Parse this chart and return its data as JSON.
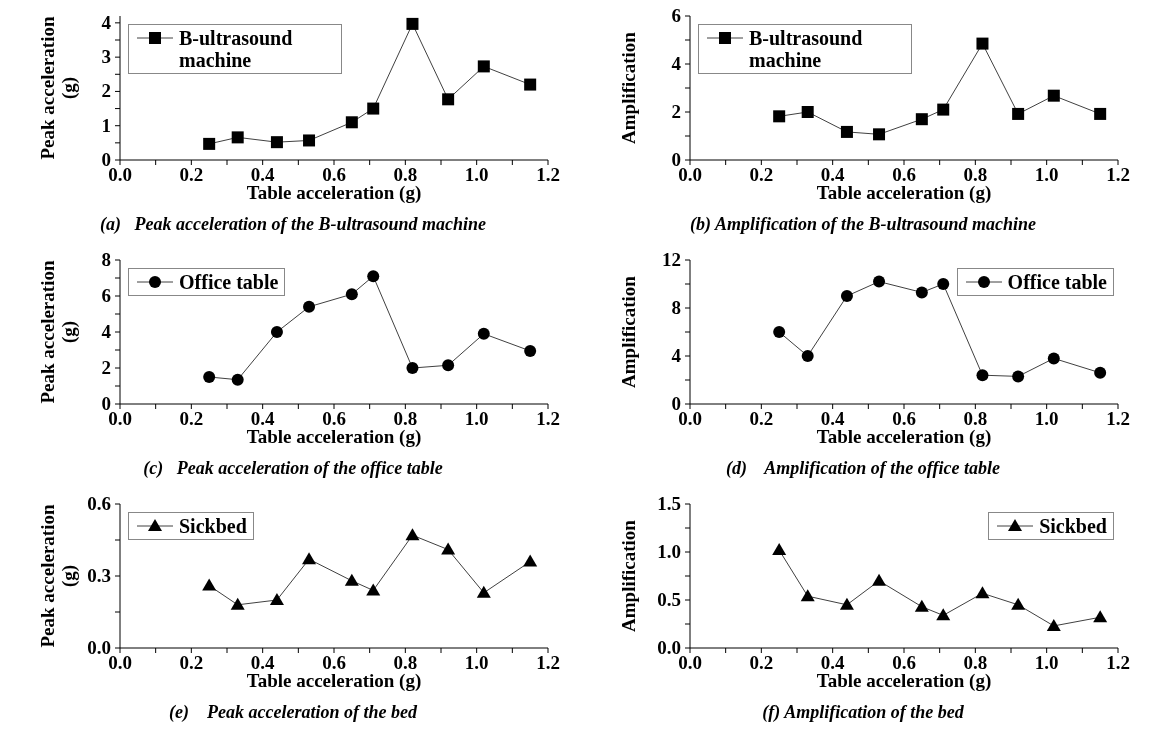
{
  "chart_data": [
    {
      "type": "line",
      "title": "(a)   Peak acceleration of the B-ultrasound machine",
      "xlabel": "Table acceleration (g)",
      "ylabel": "Peak acceleration (g)",
      "x": [
        0.25,
        0.33,
        0.44,
        0.53,
        0.65,
        0.71,
        0.82,
        0.92,
        1.02,
        1.15
      ],
      "series": [
        {
          "name": "B-ultrasound machine",
          "color": "#000000",
          "values": [
            0.47,
            0.66,
            0.52,
            0.57,
            1.1,
            1.5,
            3.97,
            1.77,
            2.73,
            2.2
          ]
        }
      ],
      "xlim": [
        0,
        1.2
      ],
      "xticks": [
        {
          "value": 0,
          "label": "0.0"
        },
        {
          "value": 0.1,
          "label": null
        },
        0.2,
        {
          "value": 0.3,
          "label": null
        },
        0.4,
        {
          "value": 0.5,
          "label": null
        },
        0.6,
        {
          "value": 0.7,
          "label": null
        },
        0.8,
        {
          "value": 0.9,
          "label": null
        },
        {
          "value": 1,
          "label": "1.0"
        },
        {
          "value": 1.1,
          "label": null
        },
        1.2
      ],
      "ylim": [
        0,
        4.2
      ],
      "yticks": [
        0,
        {
          "value": 0.5,
          "label": null
        },
        1,
        {
          "value": 1.5,
          "label": null
        },
        2,
        {
          "value": 2.5,
          "label": null
        },
        3,
        {
          "value": 3.5,
          "label": null
        },
        4
      ],
      "marker": "square",
      "legend": "top left",
      "grid": false
    },
    {
      "type": "line",
      "title": "(b) Amplification of the B-ultrasound machine",
      "xlabel": "Table acceleration (g)",
      "ylabel": "Amplification",
      "x": [
        0.25,
        0.33,
        0.44,
        0.53,
        0.65,
        0.71,
        0.82,
        0.92,
        1.02,
        1.15
      ],
      "series": [
        {
          "name": "B-ultrasound machine",
          "color": "#000000",
          "values": [
            1.82,
            2.0,
            1.17,
            1.07,
            1.7,
            2.1,
            4.85,
            1.92,
            2.68,
            1.92
          ]
        }
      ],
      "xlim": [
        0,
        1.2
      ],
      "xticks": [
        {
          "value": 0,
          "label": "0.0"
        },
        {
          "value": 0.1,
          "label": null
        },
        0.2,
        {
          "value": 0.3,
          "label": null
        },
        0.4,
        {
          "value": 0.5,
          "label": null
        },
        0.6,
        {
          "value": 0.7,
          "label": null
        },
        0.8,
        {
          "value": 0.9,
          "label": null
        },
        {
          "value": 1,
          "label": "1.0"
        },
        {
          "value": 1.1,
          "label": null
        },
        1.2
      ],
      "ylim": [
        0,
        6
      ],
      "yticks": [
        0,
        {
          "value": 1,
          "label": null
        },
        2,
        {
          "value": 3,
          "label": null
        },
        4,
        {
          "value": 5,
          "label": null
        },
        6
      ],
      "marker": "square",
      "legend": "top left",
      "grid": false
    },
    {
      "type": "line",
      "title": "(c)   Peak acceleration of the office table",
      "xlabel": "Table acceleration (g)",
      "ylabel": "Peak acceleration (g)",
      "x": [
        0.25,
        0.33,
        0.44,
        0.53,
        0.65,
        0.71,
        0.82,
        0.92,
        1.02,
        1.15
      ],
      "series": [
        {
          "name": "Office table",
          "color": "#000000",
          "values": [
            1.5,
            1.35,
            4.0,
            5.4,
            6.1,
            7.1,
            2.0,
            2.15,
            3.9,
            2.95
          ]
        }
      ],
      "xlim": [
        0,
        1.2
      ],
      "xticks": [
        {
          "value": 0,
          "label": "0.0"
        },
        {
          "value": 0.1,
          "label": null
        },
        0.2,
        {
          "value": 0.3,
          "label": null
        },
        0.4,
        {
          "value": 0.5,
          "label": null
        },
        0.6,
        {
          "value": 0.7,
          "label": null
        },
        0.8,
        {
          "value": 0.9,
          "label": null
        },
        {
          "value": 1,
          "label": "1.0"
        },
        {
          "value": 1.1,
          "label": null
        },
        1.2
      ],
      "ylim": [
        0,
        8
      ],
      "yticks": [
        0,
        {
          "value": 1,
          "label": null
        },
        2,
        {
          "value": 3,
          "label": null
        },
        4,
        {
          "value": 5,
          "label": null
        },
        6,
        {
          "value": 7,
          "label": null
        },
        8
      ],
      "marker": "circle",
      "legend": "top left",
      "grid": false
    },
    {
      "type": "line",
      "title": "(d)    Amplification of the office table",
      "xlabel": "Table acceleration (g)",
      "ylabel": "Amplification",
      "x": [
        0.25,
        0.33,
        0.44,
        0.53,
        0.65,
        0.71,
        0.82,
        0.92,
        1.02,
        1.15
      ],
      "series": [
        {
          "name": "Office table",
          "color": "#000000",
          "values": [
            6.0,
            4.0,
            9.0,
            10.2,
            9.3,
            10.0,
            2.4,
            2.3,
            3.8,
            2.6
          ]
        }
      ],
      "xlim": [
        0,
        1.2
      ],
      "xticks": [
        {
          "value": 0,
          "label": "0.0"
        },
        {
          "value": 0.1,
          "label": null
        },
        0.2,
        {
          "value": 0.3,
          "label": null
        },
        0.4,
        {
          "value": 0.5,
          "label": null
        },
        0.6,
        {
          "value": 0.7,
          "label": null
        },
        0.8,
        {
          "value": 0.9,
          "label": null
        },
        {
          "value": 1,
          "label": "1.0"
        },
        {
          "value": 1.1,
          "label": null
        },
        1.2
      ],
      "ylim": [
        0,
        12
      ],
      "yticks": [
        0,
        {
          "value": 2,
          "label": null
        },
        4,
        {
          "value": 6,
          "label": null
        },
        8,
        {
          "value": 10,
          "label": null
        },
        12
      ],
      "marker": "circle",
      "legend": "top right",
      "grid": false
    },
    {
      "type": "line",
      "title": "(e)    Peak acceleration of the bed",
      "xlabel": "Table acceleration (g)",
      "ylabel": "Peak acceleration (g)",
      "x": [
        0.25,
        0.33,
        0.44,
        0.53,
        0.65,
        0.71,
        0.82,
        0.92,
        1.02,
        1.15
      ],
      "series": [
        {
          "name": "Sickbed",
          "color": "#000000",
          "values": [
            0.26,
            0.18,
            0.2,
            0.37,
            0.28,
            0.24,
            0.47,
            0.41,
            0.23,
            0.36
          ]
        }
      ],
      "xlim": [
        0,
        1.2
      ],
      "xticks": [
        {
          "value": 0,
          "label": "0.0"
        },
        {
          "value": 0.1,
          "label": null
        },
        0.2,
        {
          "value": 0.3,
          "label": null
        },
        0.4,
        {
          "value": 0.5,
          "label": null
        },
        0.6,
        {
          "value": 0.7,
          "label": null
        },
        0.8,
        {
          "value": 0.9,
          "label": null
        },
        {
          "value": 1,
          "label": "1.0"
        },
        {
          "value": 1.1,
          "label": null
        },
        1.2
      ],
      "ylim": [
        0,
        0.6
      ],
      "yticks": [
        {
          "value": 0,
          "label": "0.0"
        },
        {
          "value": 0.15,
          "label": null
        },
        0.3,
        {
          "value": 0.45,
          "label": null
        },
        0.6
      ],
      "marker": "triangle",
      "legend": "top left",
      "grid": false
    },
    {
      "type": "line",
      "title": "(f) Amplification of the bed",
      "xlabel": "Table acceleration (g)",
      "ylabel": "Amplification",
      "x": [
        0.25,
        0.33,
        0.44,
        0.53,
        0.65,
        0.71,
        0.82,
        0.92,
        1.02,
        1.15
      ],
      "series": [
        {
          "name": "Sickbed",
          "color": "#000000",
          "values": [
            1.02,
            0.54,
            0.45,
            0.7,
            0.43,
            0.34,
            0.57,
            0.45,
            0.23,
            0.32
          ]
        }
      ],
      "xlim": [
        0,
        1.2
      ],
      "xticks": [
        {
          "value": 0,
          "label": "0.0"
        },
        {
          "value": 0.1,
          "label": null
        },
        0.2,
        {
          "value": 0.3,
          "label": null
        },
        0.4,
        {
          "value": 0.5,
          "label": null
        },
        0.6,
        {
          "value": 0.7,
          "label": null
        },
        0.8,
        {
          "value": 0.9,
          "label": null
        },
        {
          "value": 1,
          "label": "1.0"
        },
        {
          "value": 1.1,
          "label": null
        },
        1.2
      ],
      "ylim": [
        0,
        1.5
      ],
      "yticks": [
        {
          "value": 0,
          "label": "0.0"
        },
        {
          "value": 0.25,
          "label": null
        },
        {
          "value": 0.5,
          "label": "0.5"
        },
        {
          "value": 0.75,
          "label": null
        },
        {
          "value": 1,
          "label": "1.0"
        },
        {
          "value": 1.25,
          "label": null
        },
        1.5
      ],
      "marker": "triangle",
      "legend": "top right",
      "grid": false
    }
  ]
}
